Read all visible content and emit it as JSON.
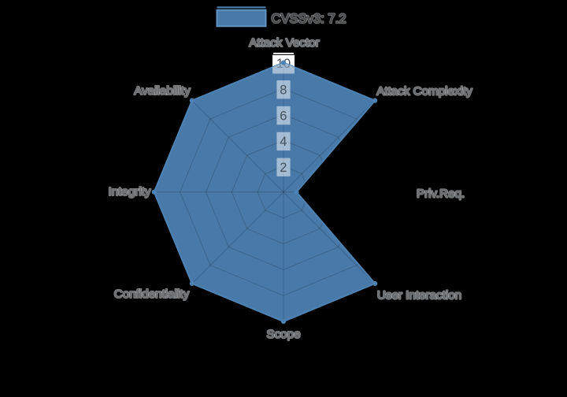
{
  "chart_data": {
    "type": "radar",
    "legend": {
      "position": "top-center",
      "entries": [
        "CVSSv3: 7.2"
      ]
    },
    "categories": [
      "Attack Vector",
      "Attack Complexity",
      "Priv.Req.",
      "User Interaction",
      "Scope",
      "Confidentiality",
      "Integrity",
      "Availability"
    ],
    "series": [
      {
        "name": "CVSSv3: 7.2",
        "values": [
          10,
          10,
          1,
          10,
          10,
          10,
          10,
          10
        ]
      }
    ],
    "r_ticks": [
      2,
      4,
      6,
      8,
      10
    ],
    "r_max": 10,
    "grid": true,
    "grid_shape": "polygon",
    "colors": {
      "background": "#000000",
      "fill": "#4879a9",
      "line": "#4d83b4",
      "grid_line": "rgba(0,0,0,0.16)",
      "axis_label": "#6d7073",
      "legend_label": "#484b4d",
      "axis_label_halo": "rgba(255,255,255,0.5)",
      "tick_label": "#44505c",
      "tick_box": "rgba(255,255,255,0.5)",
      "tick10_box": "#fcfcfc",
      "legend_swatch_edge": "#5e95c5"
    }
  }
}
